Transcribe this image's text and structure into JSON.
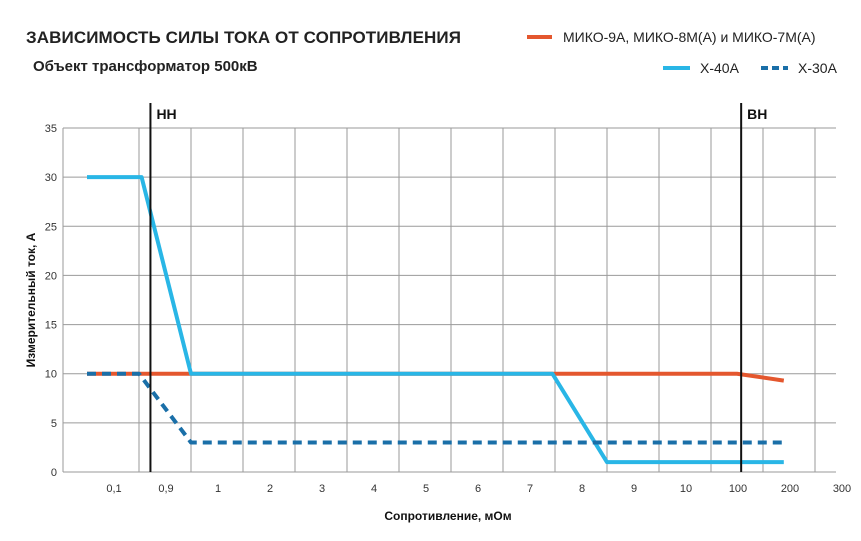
{
  "chart_data": {
    "type": "line",
    "title": "ЗАВИСИМОСТЬ СИЛЫ ТОКА ОТ СОПРОТИВЛЕНИЯ",
    "subtitle": "Объект трансформатор 500кВ",
    "xlabel": "Сопротивление, мОм",
    "ylabel": "Измерительный ток, А",
    "categories": [
      "0,1",
      "0,9",
      "1",
      "2",
      "3",
      "4",
      "5",
      "6",
      "7",
      "8",
      "9",
      "10",
      "100",
      "200",
      "300"
    ],
    "ylim": [
      0,
      35
    ],
    "yticks": [
      0,
      5,
      10,
      15,
      20,
      25,
      30,
      35
    ],
    "grid": true,
    "legend_position": "top-right",
    "markers": [
      {
        "label": "НН",
        "x": 0.72
      },
      {
        "label": "ВН",
        "x": 12.08
      }
    ],
    "series": [
      {
        "name": "МИКО-9А, МИКО-8М(А) и МИКО-7М(А)",
        "color": "#e4572e",
        "style": "solid",
        "x": [
          -0.5,
          1.5,
          8.5,
          12.0,
          12.9
        ],
        "y": [
          10,
          10,
          10,
          10,
          9.3
        ]
      },
      {
        "name": "Х-40А",
        "color": "#29b6e6",
        "style": "solid",
        "x": [
          -0.5,
          0.55,
          1.5,
          8.45,
          9.5,
          12.9
        ],
        "y": [
          30,
          30,
          10,
          10,
          1,
          1
        ]
      },
      {
        "name": "Х-30А",
        "color": "#1a6fa8",
        "style": "dashed",
        "x": [
          -0.5,
          0.5,
          1.5,
          12.9
        ],
        "y": [
          10,
          10,
          3,
          3
        ]
      }
    ]
  }
}
